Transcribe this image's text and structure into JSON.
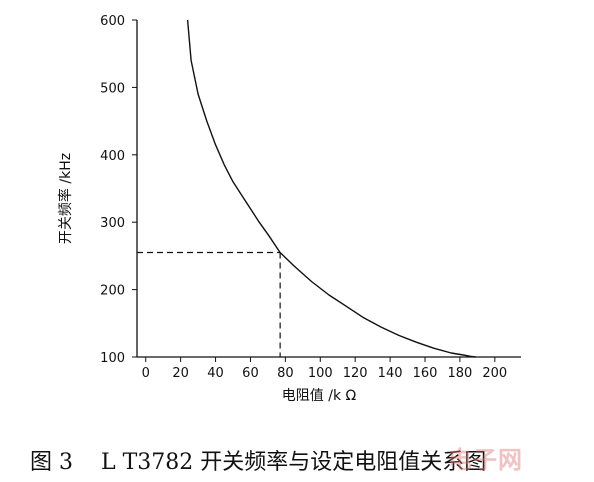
{
  "chart_data": {
    "type": "line",
    "xlabel": "电阻值 /k Ω",
    "ylabel": "开关频率 /kHz",
    "xlim": [
      -5,
      215
    ],
    "ylim": [
      100,
      600
    ],
    "x_ticks": [
      0,
      20,
      40,
      60,
      80,
      100,
      120,
      140,
      160,
      180,
      200
    ],
    "y_ticks": [
      100,
      200,
      300,
      400,
      500,
      600
    ],
    "grid": false,
    "series": [
      {
        "x": [
          24,
          26,
          30,
          35,
          40,
          45,
          50,
          55,
          60,
          65,
          70,
          77,
          85,
          95,
          105,
          115,
          125,
          135,
          145,
          155,
          165,
          175,
          182,
          186,
          189
        ],
        "y": [
          600,
          540,
          490,
          450,
          415,
          385,
          360,
          340,
          320,
          300,
          282,
          255,
          235,
          212,
          192,
          175,
          158,
          144,
          132,
          122,
          113,
          106,
          103,
          101,
          100
        ]
      }
    ],
    "reference_point": {
      "x": 77,
      "y": 255
    }
  },
  "caption": "图 3    L T3782 开关频率与设定电阻值关系图",
  "watermark": "电子网"
}
